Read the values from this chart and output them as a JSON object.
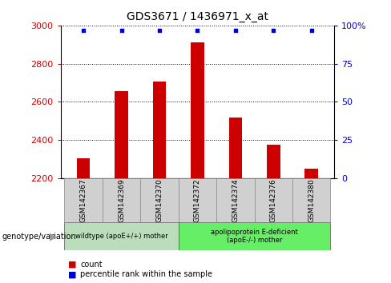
{
  "title": "GDS3671 / 1436971_x_at",
  "samples": [
    "GSM142367",
    "GSM142369",
    "GSM142370",
    "GSM142372",
    "GSM142374",
    "GSM142376",
    "GSM142380"
  ],
  "counts": [
    2305,
    2655,
    2705,
    2910,
    2520,
    2375,
    2250
  ],
  "percentile_ranks": [
    97,
    97,
    97,
    97,
    97,
    97,
    97
  ],
  "ylim_left": [
    2200,
    3000
  ],
  "ylim_right": [
    0,
    100
  ],
  "yticks_left": [
    2200,
    2400,
    2600,
    2800,
    3000
  ],
  "yticks_right": [
    0,
    25,
    50,
    75,
    100
  ],
  "bar_color": "#cc0000",
  "dot_color": "#0000cc",
  "bar_width": 0.35,
  "groups": [
    {
      "label": "wildtype (apoE+/+) mother",
      "indices": [
        0,
        1,
        2
      ],
      "color": "#99ee99"
    },
    {
      "label": "apolipoprotein E-deficient\n(apoE-/-) mother",
      "indices": [
        3,
        4,
        5,
        6
      ],
      "color": "#55ee55"
    }
  ],
  "genotype_label": "genotype/variation",
  "legend_count_label": "count",
  "legend_percentile_label": "percentile rank within the sample",
  "grid_color": "#000000",
  "background_color": "#ffffff",
  "tick_label_color_left": "#cc0000",
  "tick_label_color_right": "#0000cc",
  "label_box_color": "#d0d0d0",
  "group1_color": "#bbddbb",
  "group2_color": "#66ee66"
}
